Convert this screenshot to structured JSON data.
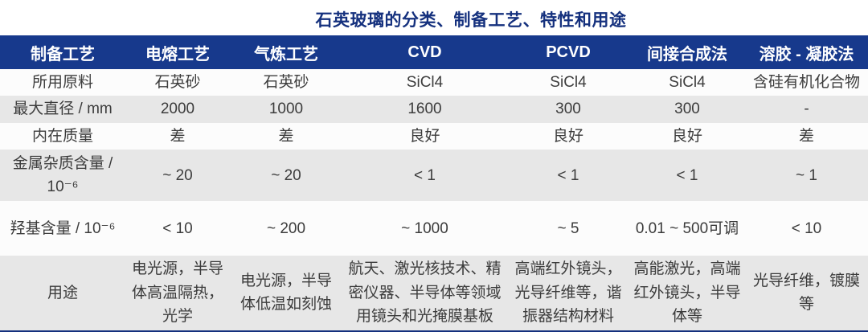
{
  "title": "石英玻璃的分类、制备工艺、特性和用途",
  "colors": {
    "title_text": "#15317E",
    "header_bg": "#17398C",
    "header_text": "#FFFFFF",
    "row_alt_bg": "#E7E7E7",
    "row_bg": "#FCFCFC",
    "body_text": "#3C3C3C",
    "table_bottom_border": "#14307E"
  },
  "table": {
    "header": [
      "制备工艺",
      "电熔工艺",
      "气炼工艺",
      "CVD",
      "PCVD",
      "间接合成法",
      "溶胶 - 凝胶法"
    ],
    "rows": [
      {
        "key": "raw-material",
        "label": "所用原料",
        "values": [
          "石英砂",
          "石英砂",
          "SiCl4",
          "SiCl4",
          "SiCl4",
          "含硅有机化合物"
        ]
      },
      {
        "key": "max-diameter",
        "label": "最大直径 / mm",
        "values": [
          "2000",
          "1000",
          "1600",
          "300",
          "300",
          "-"
        ]
      },
      {
        "key": "intrinsic-quality",
        "label": "内在质量",
        "values": [
          "差",
          "差",
          "良好",
          "良好",
          "良好",
          "差"
        ]
      },
      {
        "key": "metal-impurity-content",
        "label": "金属杂质含量 / 10⁻⁶",
        "values": [
          "~ 20",
          "~ 20",
          "< 1",
          "< 1",
          "< 1",
          "~ 1"
        ]
      },
      {
        "key": "hydroxyl-content",
        "label": "羟基含量 / 10⁻⁶",
        "values": [
          "< 10",
          "~ 200",
          "~ 1000",
          "~ 5",
          "0.01 ~ 500可调",
          "< 10"
        ]
      },
      {
        "key": "applications",
        "label": "用途",
        "values": [
          "电光源，半导体高温隔热，光学",
          "电光源，半导体低温如刻蚀",
          "航天、激光核技术、精密仪器、半导体等领域用镜头和光掩膜基板",
          "高端红外镜头，光导纤维等，谐振器结构材料",
          "高能激光，高端红外镜头，半导体等",
          "光导纤维，镀膜等"
        ]
      }
    ]
  }
}
